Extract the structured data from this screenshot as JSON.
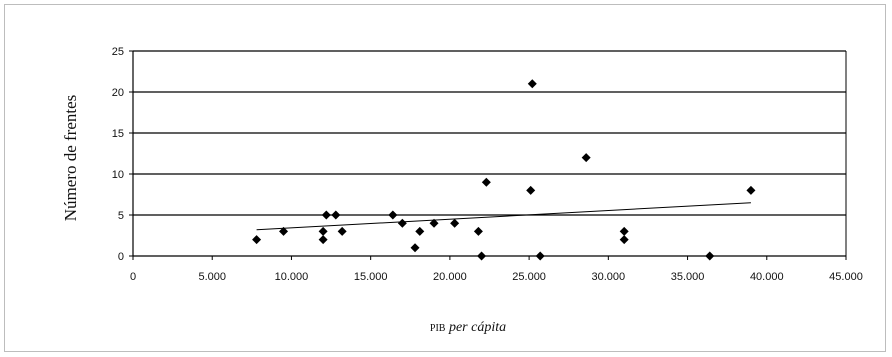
{
  "chart_data": {
    "type": "scatter",
    "title": "",
    "xlabel_prefix": "PIB",
    "xlabel_italic": "per cápita",
    "ylabel": "Número de frentes",
    "xlim": [
      0,
      45000
    ],
    "ylim": [
      0,
      25
    ],
    "x_ticks": [
      0,
      5000,
      10000,
      15000,
      20000,
      25000,
      30000,
      35000,
      40000,
      45000
    ],
    "x_tick_labels": [
      "0",
      "5.000",
      "10.000",
      "15.000",
      "20.000",
      "25.000",
      "30.000",
      "35.000",
      "40.000",
      "45.000"
    ],
    "y_ticks": [
      0,
      5,
      10,
      15,
      20,
      25
    ],
    "y_tick_labels": [
      "0",
      "5",
      "10",
      "15",
      "20",
      "25"
    ],
    "grid": "horizontal",
    "marker": "diamond",
    "points": [
      {
        "x": 7800,
        "y": 2
      },
      {
        "x": 9500,
        "y": 3
      },
      {
        "x": 12000,
        "y": 2
      },
      {
        "x": 12000,
        "y": 3
      },
      {
        "x": 12200,
        "y": 5
      },
      {
        "x": 12800,
        "y": 5
      },
      {
        "x": 13200,
        "y": 3
      },
      {
        "x": 16400,
        "y": 5
      },
      {
        "x": 17000,
        "y": 4
      },
      {
        "x": 17800,
        "y": 1
      },
      {
        "x": 18100,
        "y": 3
      },
      {
        "x": 19000,
        "y": 4
      },
      {
        "x": 20300,
        "y": 4
      },
      {
        "x": 21800,
        "y": 3
      },
      {
        "x": 22000,
        "y": 0
      },
      {
        "x": 22300,
        "y": 9
      },
      {
        "x": 25100,
        "y": 8
      },
      {
        "x": 25200,
        "y": 21
      },
      {
        "x": 25700,
        "y": 0
      },
      {
        "x": 28600,
        "y": 12
      },
      {
        "x": 31000,
        "y": 2
      },
      {
        "x": 31000,
        "y": 3
      },
      {
        "x": 36400,
        "y": 0
      },
      {
        "x": 39000,
        "y": 8
      }
    ],
    "trendline": {
      "x": [
        7800,
        39000
      ],
      "y": [
        3.2,
        6.5
      ]
    }
  }
}
